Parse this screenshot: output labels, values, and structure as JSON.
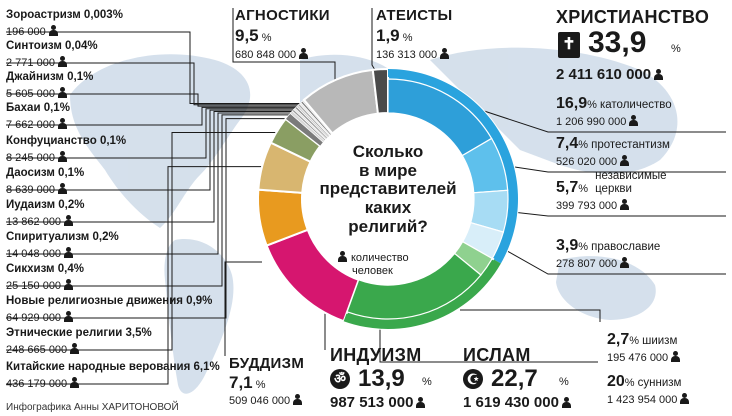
{
  "title_lines": [
    "Сколько",
    "в мире",
    "представителей",
    "каких",
    "религий?"
  ],
  "legend_text": [
    "количество",
    "человек"
  ],
  "credit": "Инфографика Анны ХАРИТОНОВОЙ",
  "icons": {
    "person": "person-icon",
    "bible": "bible-icon",
    "om": "om-icon",
    "crescent": "crescent-star-icon"
  },
  "colors": {
    "christianity": "#2aa3de",
    "islam": "#3aa84c",
    "hinduism": "#d6166f",
    "buddhism": "#e89a1f",
    "chinese": "#d8b670",
    "ethnic": "#8a9e63",
    "agnostics": "#b8b8b8",
    "atheists": "#4a4a4a",
    "map": "#c7d6e5"
  },
  "chart_data": {
    "type": "pie",
    "title": "Сколько в мире представителей каких религий?",
    "unit": "количество человек",
    "slices": [
      {
        "key": "christianity",
        "name": "ХРИСТИАНСТВО",
        "pct": "33,9",
        "value": "2 411 610 000",
        "pct_value": 33.9
      },
      {
        "key": "islam",
        "name": "ИСЛАМ",
        "pct": "22,7",
        "value": "1 619 430 000",
        "pct_value": 22.7
      },
      {
        "key": "hinduism",
        "name": "ИНДУИЗМ",
        "pct": "13,9",
        "value": "987 513 000",
        "pct_value": 13.9
      },
      {
        "key": "buddhism",
        "name": "БУДДИЗМ",
        "pct": "7,1",
        "value": "509 046 000",
        "pct_value": 7.1
      },
      {
        "key": "chinese",
        "name": "Китайские народные верования",
        "pct": "6,1",
        "value": "436 179 000",
        "pct_value": 6.1
      },
      {
        "key": "ethnic",
        "name": "Этнические религии",
        "pct": "3,5",
        "value": "248 665 000",
        "pct_value": 3.5
      },
      {
        "key": "nrm",
        "name": "Новые религиозные движения",
        "pct": "0,9",
        "value": "64 929 000",
        "pct_value": 0.9
      },
      {
        "key": "sikh",
        "name": "Сикхизм",
        "pct": "0,4",
        "value": "25 150 000",
        "pct_value": 0.4
      },
      {
        "key": "spirit",
        "name": "Спиритуализм",
        "pct": "0,2",
        "value": "14 048 000",
        "pct_value": 0.2
      },
      {
        "key": "judaism",
        "name": "Иудаизм",
        "pct": "0,2",
        "value": "13 862 000",
        "pct_value": 0.2
      },
      {
        "key": "taoism",
        "name": "Даосизм",
        "pct": "0,1",
        "value": "8 639 000",
        "pct_value": 0.1
      },
      {
        "key": "confucian",
        "name": "Конфуцианство",
        "pct": "0,1",
        "value": "8 245 000",
        "pct_value": 0.1
      },
      {
        "key": "bahai",
        "name": "Бахаи",
        "pct": "0,1",
        "value": "7 662 000",
        "pct_value": 0.1
      },
      {
        "key": "jain",
        "name": "Джайнизм",
        "pct": "0,1",
        "value": "5 605 000",
        "pct_value": 0.1
      },
      {
        "key": "shinto",
        "name": "Синтоизм",
        "pct": "0,04",
        "value": "2 771 000",
        "pct_value": 0.04
      },
      {
        "key": "zoro",
        "name": "Зороастризм",
        "pct": "0,003",
        "value": "196 000",
        "pct_value": 0.003
      },
      {
        "key": "agnostics",
        "name": "АГНОСТИКИ",
        "pct": "9,5",
        "value": "680 848 000",
        "pct_value": 9.5
      },
      {
        "key": "atheists",
        "name": "АТЕИСТЫ",
        "pct": "1,9",
        "value": "136 313 000",
        "pct_value": 1.9
      }
    ],
    "christian_subgroups": [
      {
        "name": "католичество",
        "pct": "16,9",
        "value": "1 206 990 000",
        "pct_value": 16.9,
        "color": "#2e9fd9"
      },
      {
        "name": "протестантизм",
        "pct": "7,4",
        "value": "526 020 000",
        "pct_value": 7.4,
        "color": "#5ec0ec"
      },
      {
        "name": "независимые церкви",
        "name_lines": [
          "независимые",
          "церкви"
        ],
        "pct": "5,7",
        "value": "399 793 000",
        "pct_value": 5.7,
        "color": "#a7dcf4"
      },
      {
        "name": "православие",
        "pct": "3,9",
        "value": "278 807 000",
        "pct_value": 3.9,
        "color": "#d8eef9"
      }
    ],
    "islam_subgroups": [
      {
        "name": "шиизм",
        "pct": "2,7",
        "value": "195 476 000",
        "pct_value": 2.7,
        "color": "#8fd18f"
      },
      {
        "name": "суннизм",
        "pct": "20",
        "value": "1 423 954 000",
        "pct_value": 20,
        "color": "#3aa84c"
      }
    ]
  }
}
